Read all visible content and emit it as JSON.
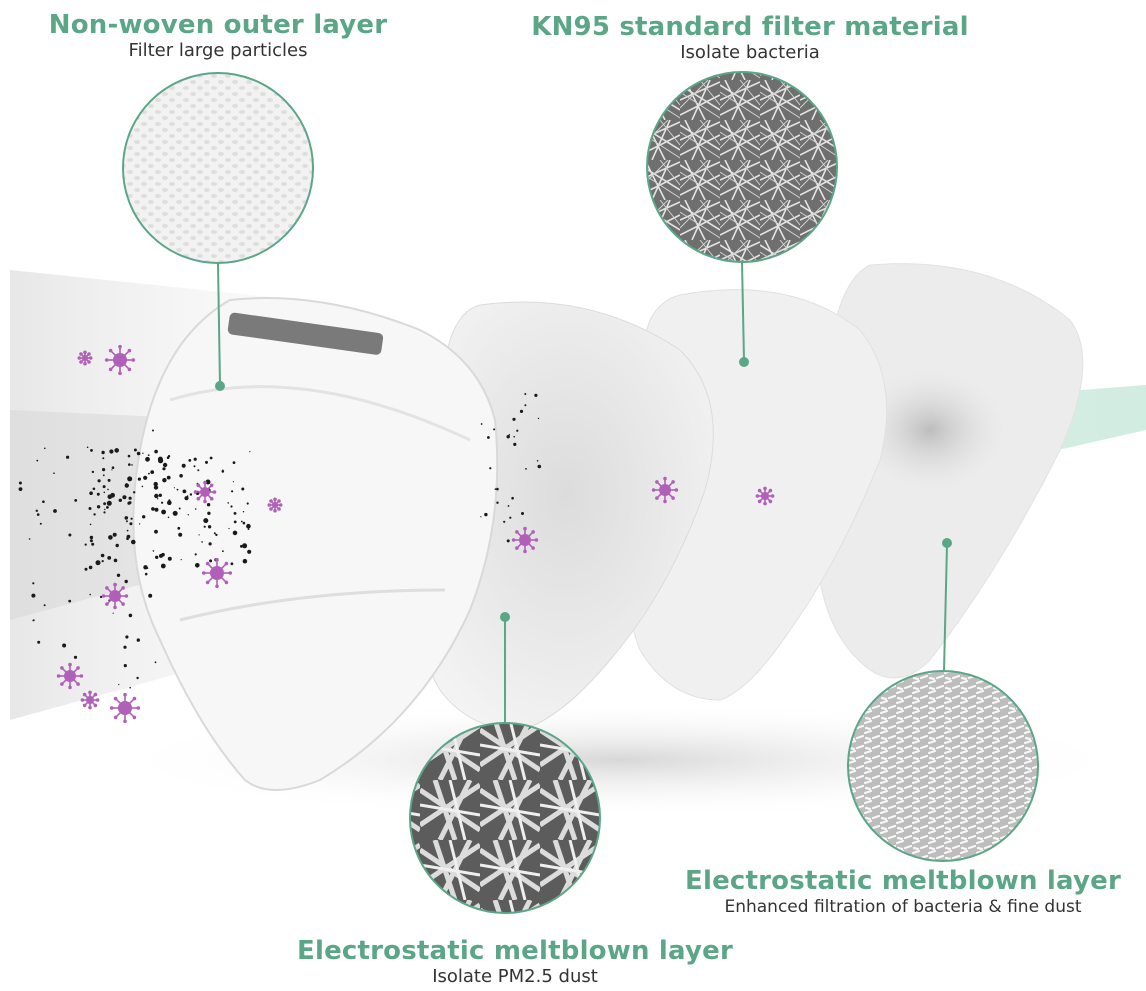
{
  "colors": {
    "accent": "#5aa687",
    "virus": "#b060b8",
    "dust": "#1a1a1a",
    "subtitle": "#333333"
  },
  "labels": {
    "outer": {
      "title": "Non-woven outer layer",
      "subtitle": "Filter large particles"
    },
    "kn95": {
      "title": "KN95 standard filter material",
      "subtitle": "Isolate bacteria"
    },
    "melt_right": {
      "title": "Electrostatic meltblown layer",
      "subtitle": "Enhanced filtration of bacteria & fine dust"
    },
    "melt_bottom": {
      "title": "Electrostatic meltblown layer",
      "subtitle": "Isolate PM2.5 dust"
    }
  },
  "icons": {
    "virus": "virus-icon",
    "dust": "dust-particle"
  }
}
